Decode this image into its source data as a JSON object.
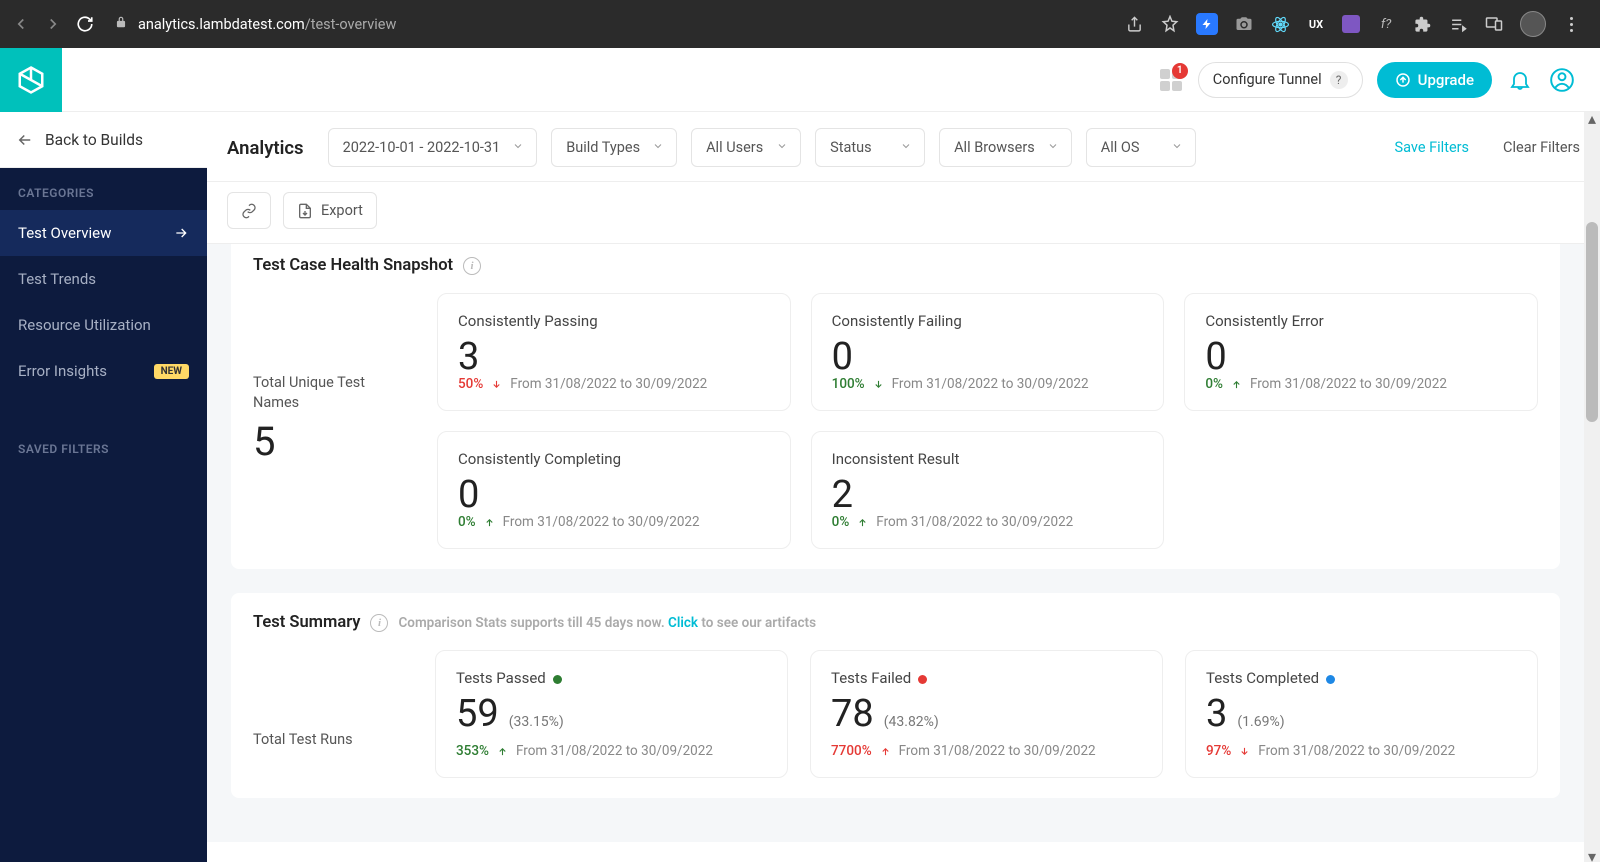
{
  "browser": {
    "url_domain": "analytics.lambdatest.com",
    "url_path": "/test-overview",
    "badge": "1"
  },
  "topbar": {
    "configure_tunnel": "Configure Tunnel",
    "upgrade": "Upgrade",
    "grid_badge": "1"
  },
  "sidebar": {
    "back_label": "Back to Builds",
    "categories_label": "CATEGORIES",
    "items": [
      {
        "label": "Test Overview",
        "active": true
      },
      {
        "label": "Test Trends"
      },
      {
        "label": "Resource Utilization"
      },
      {
        "label": "Error Insights",
        "badge": "NEW"
      }
    ],
    "saved_filters_label": "SAVED FILTERS"
  },
  "filters": {
    "page_title": "Analytics",
    "date_range": "2022-10-01 - 2022-10-31",
    "build_types": "Build Types",
    "users": "All Users",
    "status": "Status",
    "browsers": "All Browsers",
    "os": "All OS",
    "save_filters": "Save Filters",
    "clear_filters": "Clear Filters",
    "export": "Export"
  },
  "health": {
    "title": "Test Case Health Snapshot",
    "total_label": "Total Unique Test Names",
    "total_value": "5",
    "range_text": "From 31/08/2022 to 30/09/2022",
    "cards": [
      {
        "title": "Consistently Passing",
        "value": "3",
        "pct": "50%",
        "dir": "down",
        "pct_color": "#e53935"
      },
      {
        "title": "Consistently Failing",
        "value": "0",
        "pct": "100%",
        "dir": "down",
        "pct_color": "#2e7d32"
      },
      {
        "title": "Consistently Error",
        "value": "0",
        "pct": "0%",
        "dir": "up",
        "pct_color": "#2e7d32"
      },
      {
        "title": "Consistently Completing",
        "value": "0",
        "pct": "0%",
        "dir": "up",
        "pct_color": "#2e7d32"
      },
      {
        "title": "Inconsistent Result",
        "value": "2",
        "pct": "0%",
        "dir": "up",
        "pct_color": "#2e7d32"
      }
    ]
  },
  "summary": {
    "title": "Test Summary",
    "note_prefix": "Comparison Stats supports till 45 days now. ",
    "note_link": "Click",
    "note_suffix": " to see our artifacts",
    "total_label": "Total Test Runs",
    "range_text": "From 31/08/2022 to 30/09/2022",
    "cards": [
      {
        "title": "Tests Passed",
        "dot": "#2e7d32",
        "value": "59",
        "pct": "(33.15%)",
        "delta": "353%",
        "delta_color": "#2e7d32",
        "dir": "up"
      },
      {
        "title": "Tests Failed",
        "dot": "#e53935",
        "value": "78",
        "pct": "(43.82%)",
        "delta": "7700%",
        "delta_color": "#e53935",
        "dir": "up"
      },
      {
        "title": "Tests Completed",
        "dot": "#1e88e5",
        "value": "3",
        "pct": "(1.69%)",
        "delta": "97%",
        "delta_color": "#e53935",
        "dir": "down"
      }
    ]
  },
  "colors": {
    "accent": "#00bcd4",
    "sidebar_bg": "#0d1b3e",
    "sidebar_active": "#152a5c",
    "red": "#e53935",
    "green": "#2e7d32",
    "blue": "#1e88e5"
  }
}
